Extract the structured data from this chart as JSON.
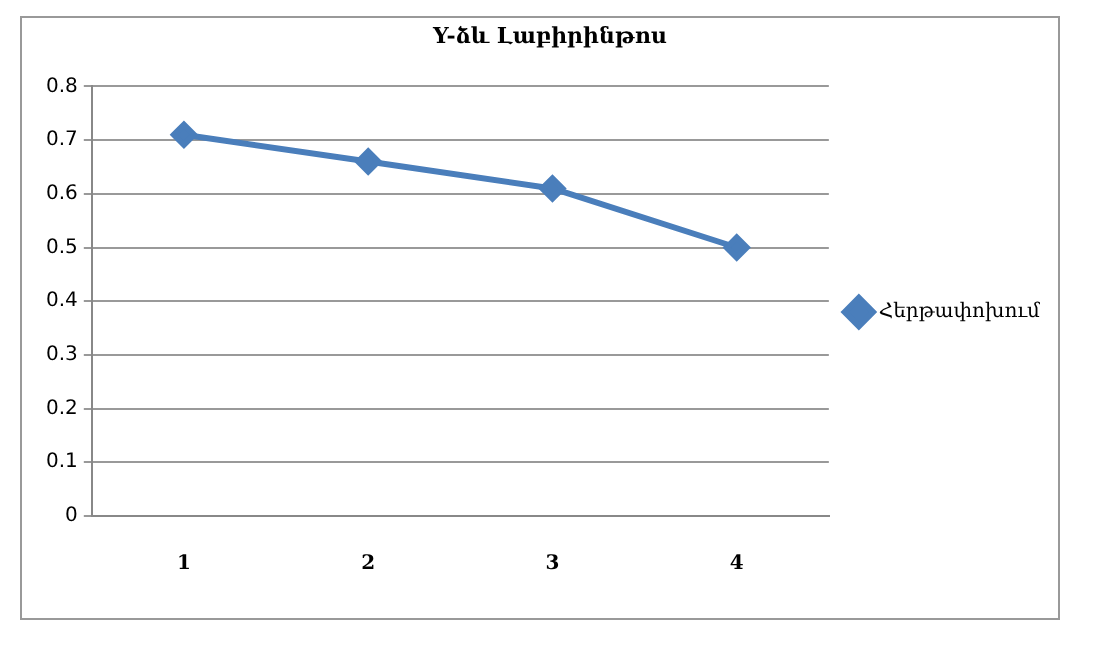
{
  "chart_data": {
    "type": "line",
    "title": "Y-ձև Լաբիրինթոս",
    "categories": [
      "1",
      "2",
      "3",
      "4"
    ],
    "series": [
      {
        "name": "Հերթափոխում",
        "color": "#4a7ebb",
        "values": [
          0.71,
          0.66,
          0.61,
          0.5
        ]
      }
    ],
    "ylim": [
      0,
      0.8
    ],
    "yticks": [
      0,
      0.1,
      0.2,
      0.3,
      0.4,
      0.5,
      0.6,
      0.7,
      0.8
    ],
    "grid": "y",
    "legend": "right",
    "marker": "diamond"
  }
}
